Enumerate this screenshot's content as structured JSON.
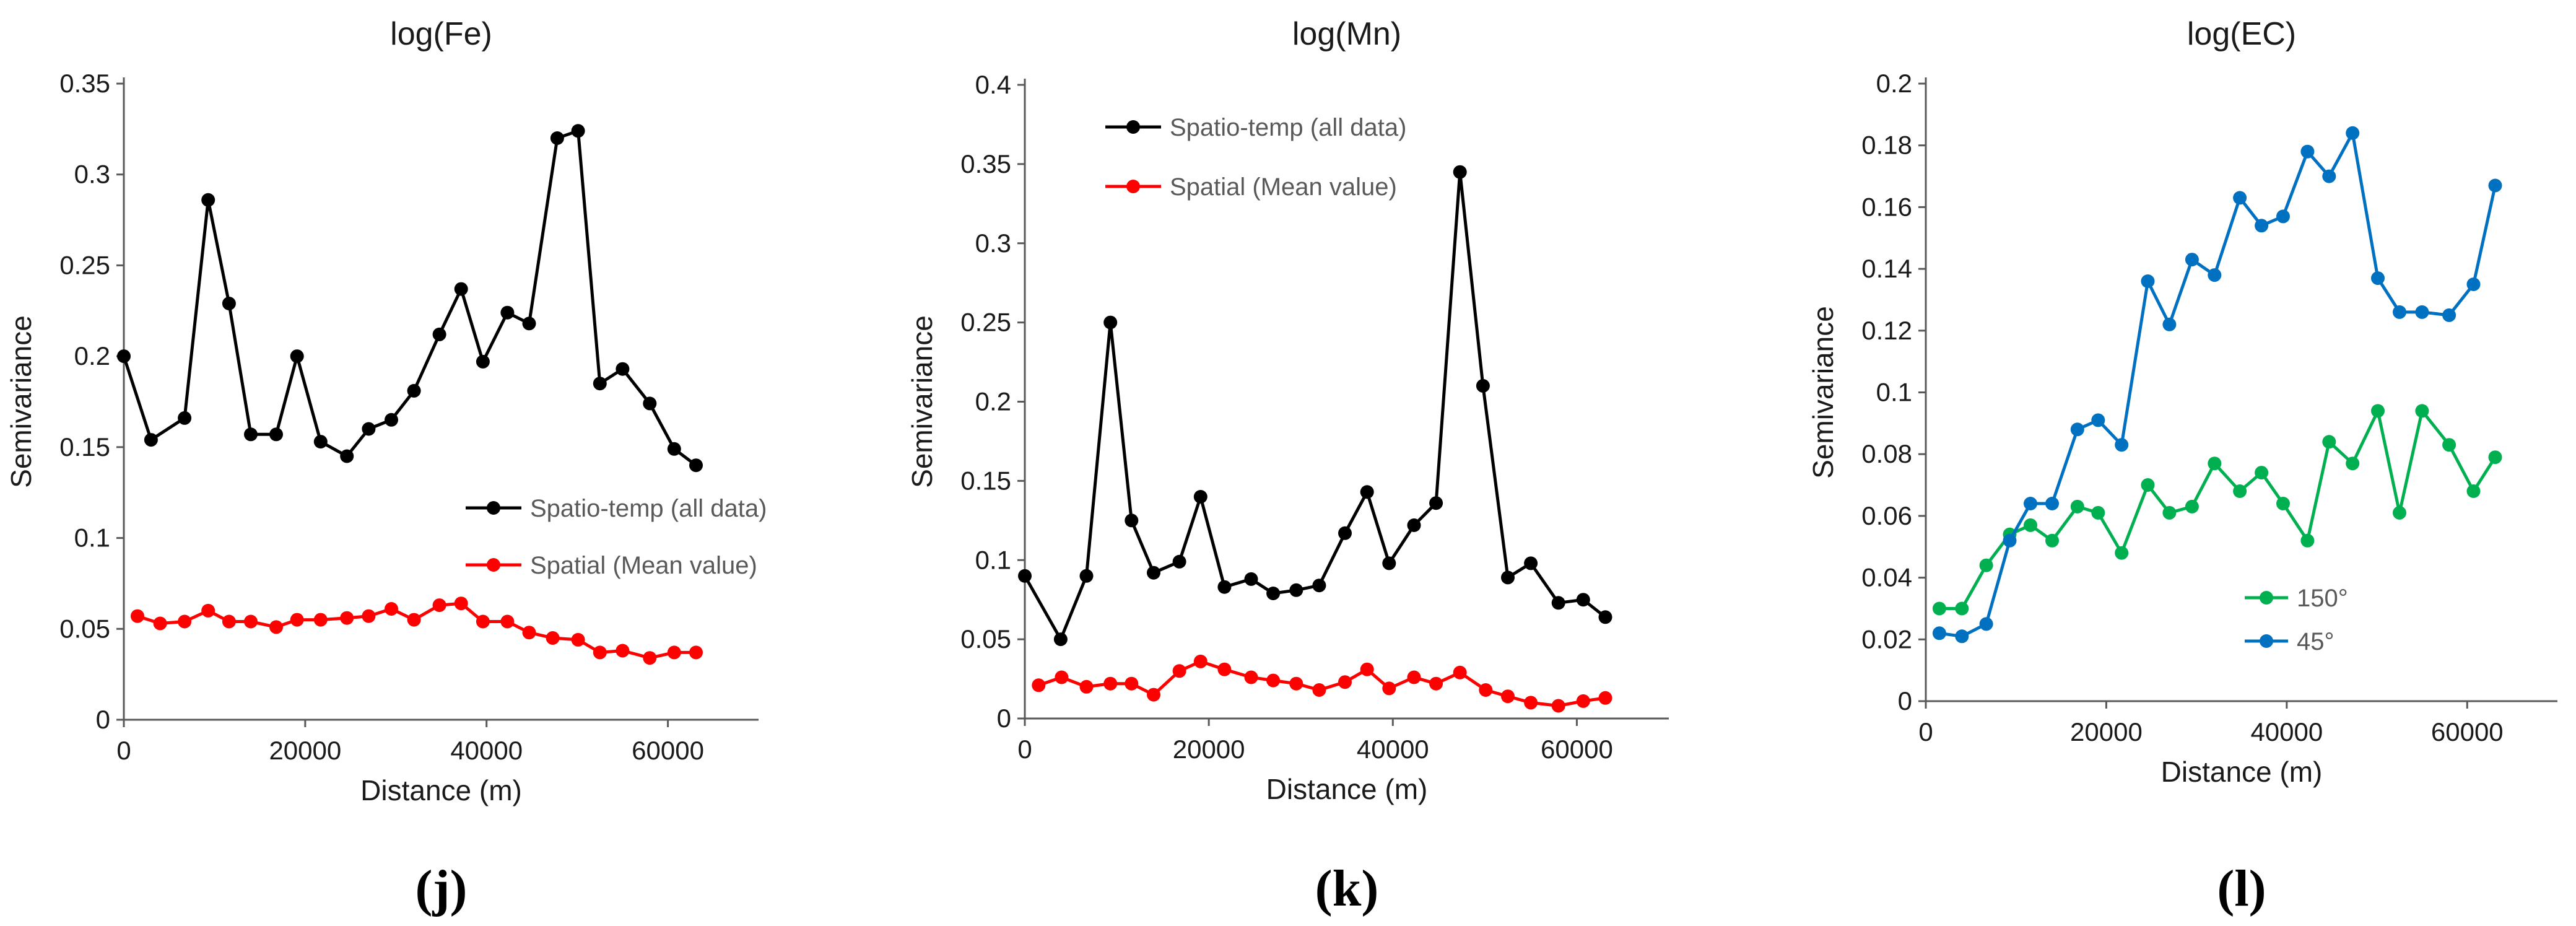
{
  "chart_data": [
    {
      "type": "line",
      "title": "log(Fe)",
      "panel_label": "(j)",
      "xlabel": "Distance (m)",
      "ylabel": "Semivariance",
      "xlim": [
        0,
        70000
      ],
      "ylim": [
        0,
        0.35
      ],
      "xticks": [
        0,
        20000,
        40000,
        60000
      ],
      "xtick_labels": [
        "0",
        "20000",
        "40000",
        "60000"
      ],
      "yticks": [
        0,
        0.05,
        0.1,
        0.15,
        0.2,
        0.25,
        0.3,
        0.35
      ],
      "ytick_labels": [
        "0",
        "0.05",
        "0.1",
        "0.15",
        "0.2",
        "0.25",
        "0.3",
        "0.35"
      ],
      "legend_position": "right",
      "series": [
        {
          "name": "Spatio-temp (all data)",
          "color": "#000000",
          "x": [
            0,
            3000,
            6700,
            9300,
            11600,
            14000,
            16800,
            19100,
            21700,
            24600,
            27000,
            29500,
            32000,
            34800,
            37200,
            39600,
            42300,
            44700,
            47800,
            50100,
            52500,
            55000,
            58000,
            60700,
            63100
          ],
          "y": [
            0.2,
            0.154,
            0.166,
            0.286,
            0.229,
            0.157,
            0.157,
            0.2,
            0.153,
            0.145,
            0.16,
            0.165,
            0.181,
            0.212,
            0.237,
            0.197,
            0.224,
            0.218,
            0.32,
            0.324,
            0.185,
            0.193,
            0.174,
            0.149,
            0.14
          ]
        },
        {
          "name": "Spatial (Mean value)",
          "color": "#ff0000",
          "x": [
            1500,
            4000,
            6700,
            9300,
            11600,
            14000,
            16800,
            19100,
            21700,
            24600,
            27000,
            29500,
            32000,
            34800,
            37200,
            39600,
            42300,
            44700,
            47300,
            50100,
            52500,
            55000,
            58000,
            60700,
            63100
          ],
          "y": [
            0.057,
            0.053,
            0.054,
            0.06,
            0.054,
            0.054,
            0.051,
            0.055,
            0.055,
            0.056,
            0.057,
            0.061,
            0.055,
            0.063,
            0.064,
            0.054,
            0.054,
            0.048,
            0.045,
            0.044,
            0.037,
            0.038,
            0.034,
            0.037,
            0.037
          ]
        }
      ]
    },
    {
      "type": "line",
      "title": "log(Mn)",
      "panel_label": "(k)",
      "xlabel": "Distance (m)",
      "ylabel": "Semivariance",
      "xlim": [
        0,
        70000
      ],
      "ylim": [
        0,
        0.4
      ],
      "xticks": [
        0,
        20000,
        40000,
        60000
      ],
      "xtick_labels": [
        "0",
        "20000",
        "40000",
        "60000"
      ],
      "yticks": [
        0,
        0.05,
        0.1,
        0.15,
        0.2,
        0.25,
        0.3,
        0.35,
        0.4
      ],
      "ytick_labels": [
        "0",
        "0.05",
        "0.1",
        "0.15",
        "0.2",
        "0.25",
        "0.3",
        "0.35",
        "0.4"
      ],
      "legend_position": "top-left",
      "series": [
        {
          "name": "Spatio-temp (all data)",
          "color": "#000000",
          "x": [
            0,
            3900,
            6700,
            9300,
            11600,
            14000,
            16800,
            19100,
            21700,
            24600,
            27000,
            29500,
            32000,
            34800,
            37200,
            39600,
            42300,
            44700,
            47300,
            49800,
            52500,
            55000,
            58000,
            60700,
            63100
          ],
          "y": [
            0.09,
            0.05,
            0.09,
            0.25,
            0.125,
            0.092,
            0.099,
            0.14,
            0.083,
            0.088,
            0.079,
            0.081,
            0.084,
            0.117,
            0.143,
            0.098,
            0.122,
            0.136,
            0.345,
            0.21,
            0.089,
            0.098,
            0.073,
            0.075,
            0.064
          ]
        },
        {
          "name": "Spatial (Mean value)",
          "color": "#ff0000",
          "x": [
            1500,
            4000,
            6700,
            9300,
            11600,
            14000,
            16800,
            19100,
            21700,
            24600,
            27000,
            29500,
            32000,
            34800,
            37200,
            39600,
            42300,
            44700,
            47300,
            50100,
            52500,
            55000,
            58000,
            60700,
            63100
          ],
          "y": [
            0.021,
            0.026,
            0.02,
            0.022,
            0.022,
            0.015,
            0.03,
            0.036,
            0.031,
            0.026,
            0.024,
            0.022,
            0.018,
            0.023,
            0.031,
            0.019,
            0.026,
            0.022,
            0.029,
            0.018,
            0.014,
            0.01,
            0.008,
            0.011,
            0.013
          ]
        }
      ]
    },
    {
      "type": "line",
      "title": "log(EC)",
      "panel_label": "(l)",
      "xlabel": "Distance (m)",
      "ylabel": "Semivariance",
      "xlim": [
        0,
        70000
      ],
      "ylim": [
        0,
        0.2
      ],
      "xticks": [
        0,
        20000,
        40000,
        60000
      ],
      "xtick_labels": [
        "0",
        "20000",
        "40000",
        "60000"
      ],
      "yticks": [
        0,
        0.02,
        0.04,
        0.06,
        0.08,
        0.1,
        0.12,
        0.14,
        0.16,
        0.18,
        0.2
      ],
      "ytick_labels": [
        "0",
        "0.02",
        "0.04",
        "0.06",
        "0.08",
        "0.1",
        "0.12",
        "0.14",
        "0.16",
        "0.18",
        "0.2"
      ],
      "legend_position": "bottom-left",
      "series": [
        {
          "name": "150°",
          "color": "#00b050",
          "x": [
            1500,
            4000,
            6700,
            9300,
            11600,
            14000,
            16800,
            19100,
            21700,
            24600,
            27000,
            29500,
            32000,
            34800,
            37200,
            39600,
            42300,
            44700,
            47300,
            50100,
            52500,
            55000,
            58000,
            60700,
            63100
          ],
          "y": [
            0.03,
            0.03,
            0.044,
            0.054,
            0.057,
            0.052,
            0.063,
            0.061,
            0.048,
            0.07,
            0.061,
            0.063,
            0.077,
            0.068,
            0.074,
            0.064,
            0.052,
            0.084,
            0.077,
            0.094,
            0.061,
            0.094,
            0.083,
            0.068,
            0.079
          ]
        },
        {
          "name": "45°",
          "color": "#0070c0",
          "x": [
            1500,
            4000,
            6700,
            9300,
            11600,
            14000,
            16800,
            19100,
            21700,
            24600,
            27000,
            29500,
            32000,
            34800,
            37200,
            39600,
            42300,
            44700,
            47300,
            50100,
            52500,
            55000,
            58000,
            60700,
            63100
          ],
          "y": [
            0.022,
            0.021,
            0.025,
            0.052,
            0.064,
            0.064,
            0.088,
            0.091,
            0.083,
            0.136,
            0.122,
            0.143,
            0.138,
            0.163,
            0.154,
            0.157,
            0.178,
            0.17,
            0.184,
            0.137,
            0.126,
            0.126,
            0.125,
            0.135,
            0.167
          ]
        }
      ]
    }
  ]
}
